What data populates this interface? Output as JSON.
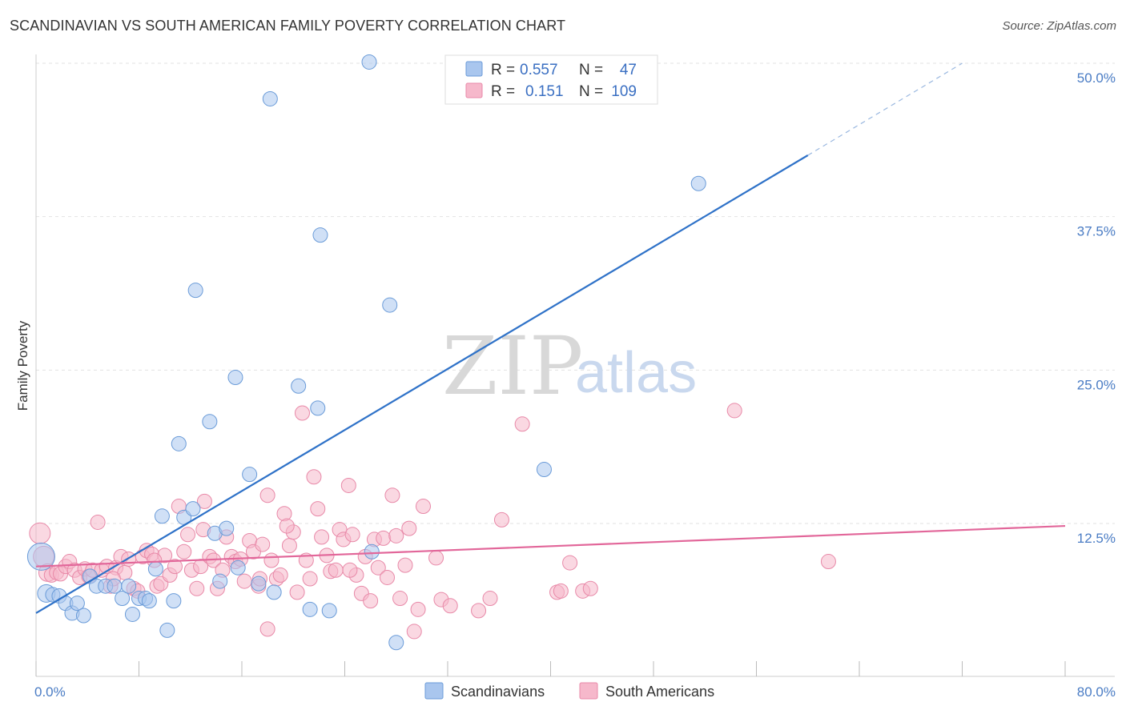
{
  "header": {
    "title": "SCANDINAVIAN VS SOUTH AMERICAN FAMILY POVERTY CORRELATION CHART",
    "source": "Source: ZipAtlas.com"
  },
  "watermark": {
    "zip": "ZIP",
    "atlas": "atlas"
  },
  "colors": {
    "scandinavian_fill": "#a9c6ee",
    "scandinavian_stroke": "#6a9bd8",
    "scandinavian_line": "#2f72c8",
    "south_american_fill": "#f6b8cb",
    "south_american_stroke": "#e889a8",
    "south_american_line": "#e2679a",
    "axis_label": "#4a7cc4",
    "grid": "#e2e2e2"
  },
  "legend": {
    "rows": [
      {
        "r_label": "R =",
        "r_value": "0.557",
        "n_label": "N =",
        "n_value": "47"
      },
      {
        "r_label": "R =",
        "r_value": "0.151",
        "n_label": "N =",
        "n_value": "109"
      }
    ]
  },
  "chart_data": {
    "type": "scatter",
    "title": "SCANDINAVIAN VS SOUTH AMERICAN FAMILY POVERTY CORRELATION CHART",
    "xlabel": "",
    "ylabel": "Family Poverty",
    "xlim": [
      0,
      80
    ],
    "ylim": [
      0,
      52
    ],
    "x_tick_labels": [
      "0.0%",
      "80.0%"
    ],
    "y_ticks": [
      12.5,
      25.0,
      37.5,
      50.0
    ],
    "y_tick_labels": [
      "12.5%",
      "25.0%",
      "37.5%",
      "50.0%"
    ],
    "grid": "horizontal dashed",
    "legend_position": "top-center",
    "series": [
      {
        "name": "Scandinavians",
        "r": 0.557,
        "n": 47,
        "trend": {
          "x0": 0,
          "y0": 5.2,
          "x1": 60,
          "y1": 42.5,
          "dashed_to_x": 72,
          "dashed_to_y": 50.0
        },
        "points": [
          [
            0.4,
            9.8,
            18
          ],
          [
            0.8,
            6.8,
            12
          ],
          [
            1.3,
            6.7,
            10
          ],
          [
            1.8,
            6.6,
            10
          ],
          [
            2.3,
            6.0,
            10
          ],
          [
            2.8,
            5.2,
            10
          ],
          [
            3.2,
            6.0,
            10
          ],
          [
            3.7,
            5.0,
            10
          ],
          [
            4.2,
            8.2,
            10
          ],
          [
            4.7,
            7.4,
            10
          ],
          [
            5.4,
            7.4,
            10
          ],
          [
            6.1,
            7.4,
            10
          ],
          [
            6.7,
            6.4,
            10
          ],
          [
            7.2,
            7.4,
            10
          ],
          [
            7.5,
            5.1,
            10
          ],
          [
            8.0,
            6.4,
            10
          ],
          [
            8.5,
            6.4,
            10
          ],
          [
            8.8,
            6.2,
            10
          ],
          [
            9.3,
            8.8,
            10
          ],
          [
            9.8,
            13.1,
            10
          ],
          [
            10.2,
            3.8,
            10
          ],
          [
            10.7,
            6.2,
            10
          ],
          [
            11.1,
            19.0,
            10
          ],
          [
            11.5,
            13.0,
            10
          ],
          [
            12.2,
            13.7,
            10
          ],
          [
            12.4,
            31.5,
            10
          ],
          [
            13.5,
            20.8,
            10
          ],
          [
            13.9,
            11.7,
            10
          ],
          [
            14.3,
            7.8,
            10
          ],
          [
            14.8,
            12.1,
            10
          ],
          [
            15.5,
            24.4,
            10
          ],
          [
            15.7,
            8.9,
            10
          ],
          [
            16.6,
            16.5,
            10
          ],
          [
            17.3,
            7.6,
            10
          ],
          [
            18.2,
            47.1,
            10
          ],
          [
            18.5,
            6.9,
            10
          ],
          [
            20.4,
            23.7,
            10
          ],
          [
            21.3,
            5.5,
            10
          ],
          [
            21.9,
            21.9,
            10
          ],
          [
            22.1,
            36.0,
            10
          ],
          [
            22.8,
            5.4,
            10
          ],
          [
            25.9,
            50.1,
            10
          ],
          [
            26.1,
            10.2,
            10
          ],
          [
            27.5,
            30.3,
            10
          ],
          [
            28.0,
            2.8,
            10
          ],
          [
            39.5,
            16.9,
            10
          ],
          [
            51.5,
            40.2,
            10
          ]
        ]
      },
      {
        "name": "South Americans",
        "r": 0.151,
        "n": 109,
        "trend": {
          "x0": 0,
          "y0": 9.0,
          "x1": 80,
          "y1": 12.3
        },
        "points": [
          [
            0.3,
            11.7,
            14
          ],
          [
            0.6,
            9.8,
            14
          ],
          [
            0.9,
            8.5,
            12
          ],
          [
            1.2,
            8.3,
            10
          ],
          [
            1.6,
            8.5,
            10
          ],
          [
            1.9,
            8.4,
            10
          ],
          [
            2.3,
            9.0,
            10
          ],
          [
            2.6,
            9.4,
            10
          ],
          [
            3.0,
            8.7,
            10
          ],
          [
            3.4,
            8.1,
            10
          ],
          [
            3.8,
            8.8,
            10
          ],
          [
            4.1,
            8.2,
            10
          ],
          [
            4.4,
            8.7,
            10
          ],
          [
            4.8,
            12.6,
            10
          ],
          [
            5.1,
            8.7,
            10
          ],
          [
            5.5,
            9.0,
            10
          ],
          [
            5.8,
            7.4,
            10
          ],
          [
            6.2,
            8.9,
            10
          ],
          [
            6.6,
            9.8,
            10
          ],
          [
            6.9,
            8.5,
            10
          ],
          [
            7.2,
            9.6,
            10
          ],
          [
            7.6,
            7.2,
            10
          ],
          [
            7.9,
            7.0,
            10
          ],
          [
            8.3,
            9.8,
            10
          ],
          [
            8.6,
            10.3,
            10
          ],
          [
            9.0,
            10.0,
            10
          ],
          [
            9.4,
            7.4,
            10
          ],
          [
            9.7,
            7.6,
            10
          ],
          [
            10.0,
            9.9,
            10
          ],
          [
            10.4,
            8.3,
            10
          ],
          [
            10.8,
            9.0,
            10
          ],
          [
            11.1,
            13.9,
            10
          ],
          [
            11.5,
            10.2,
            10
          ],
          [
            11.8,
            11.6,
            10
          ],
          [
            12.1,
            8.7,
            10
          ],
          [
            12.5,
            7.2,
            10
          ],
          [
            12.8,
            9.0,
            10
          ],
          [
            13.1,
            14.3,
            10
          ],
          [
            13.5,
            9.8,
            10
          ],
          [
            13.8,
            9.5,
            10
          ],
          [
            14.1,
            7.2,
            10
          ],
          [
            14.5,
            8.7,
            10
          ],
          [
            14.8,
            11.4,
            10
          ],
          [
            15.2,
            9.8,
            10
          ],
          [
            15.5,
            9.4,
            10
          ],
          [
            15.9,
            9.6,
            10
          ],
          [
            16.2,
            7.8,
            10
          ],
          [
            16.6,
            11.1,
            10
          ],
          [
            16.9,
            10.2,
            10
          ],
          [
            17.3,
            7.4,
            10
          ],
          [
            17.6,
            10.8,
            10
          ],
          [
            18.0,
            14.8,
            10
          ],
          [
            18.3,
            9.5,
            10
          ],
          [
            18.7,
            8.0,
            10
          ],
          [
            19.0,
            8.3,
            10
          ],
          [
            19.3,
            13.3,
            10
          ],
          [
            19.7,
            10.7,
            10
          ],
          [
            20.0,
            11.8,
            10
          ],
          [
            20.3,
            6.9,
            10
          ],
          [
            20.7,
            21.5,
            10
          ],
          [
            21.0,
            9.5,
            10
          ],
          [
            21.3,
            8.0,
            10
          ],
          [
            21.6,
            16.3,
            10
          ],
          [
            21.9,
            13.7,
            10
          ],
          [
            22.2,
            11.4,
            10
          ],
          [
            22.6,
            9.9,
            10
          ],
          [
            22.9,
            8.6,
            10
          ],
          [
            23.3,
            8.7,
            10
          ],
          [
            23.6,
            12.0,
            10
          ],
          [
            23.9,
            11.2,
            10
          ],
          [
            24.3,
            15.6,
            10
          ],
          [
            24.6,
            11.6,
            10
          ],
          [
            24.9,
            8.3,
            10
          ],
          [
            25.3,
            6.8,
            10
          ],
          [
            25.6,
            9.8,
            10
          ],
          [
            26.0,
            6.2,
            10
          ],
          [
            26.3,
            11.2,
            10
          ],
          [
            26.6,
            8.9,
            10
          ],
          [
            27.0,
            11.3,
            10
          ],
          [
            27.3,
            8.1,
            10
          ],
          [
            27.7,
            14.8,
            10
          ],
          [
            28.0,
            11.5,
            10
          ],
          [
            28.3,
            6.4,
            10
          ],
          [
            28.7,
            9.1,
            10
          ],
          [
            29.0,
            12.1,
            10
          ],
          [
            29.4,
            3.7,
            10
          ],
          [
            29.7,
            5.5,
            10
          ],
          [
            30.1,
            13.9,
            10
          ],
          [
            31.1,
            9.7,
            10
          ],
          [
            31.5,
            6.3,
            10
          ],
          [
            32.2,
            5.8,
            10
          ],
          [
            34.4,
            5.4,
            10
          ],
          [
            35.3,
            6.4,
            10
          ],
          [
            36.2,
            12.8,
            10
          ],
          [
            37.8,
            20.6,
            10
          ],
          [
            40.5,
            6.9,
            10
          ],
          [
            40.8,
            7.0,
            10
          ],
          [
            41.5,
            9.3,
            10
          ],
          [
            42.5,
            7.0,
            10
          ],
          [
            43.1,
            7.2,
            10
          ],
          [
            18.0,
            3.9,
            10
          ],
          [
            19.5,
            12.3,
            10
          ],
          [
            24.4,
            8.7,
            10
          ],
          [
            13.0,
            12.0,
            10
          ],
          [
            54.3,
            21.7,
            10
          ],
          [
            61.6,
            9.4,
            10
          ],
          [
            6.0,
            8.0,
            10
          ],
          [
            9.2,
            9.5,
            10
          ],
          [
            17.4,
            8.0,
            10
          ]
        ]
      }
    ]
  },
  "bottom_legend": {
    "items": [
      {
        "label": "Scandinavians"
      },
      {
        "label": "South Americans"
      }
    ]
  }
}
